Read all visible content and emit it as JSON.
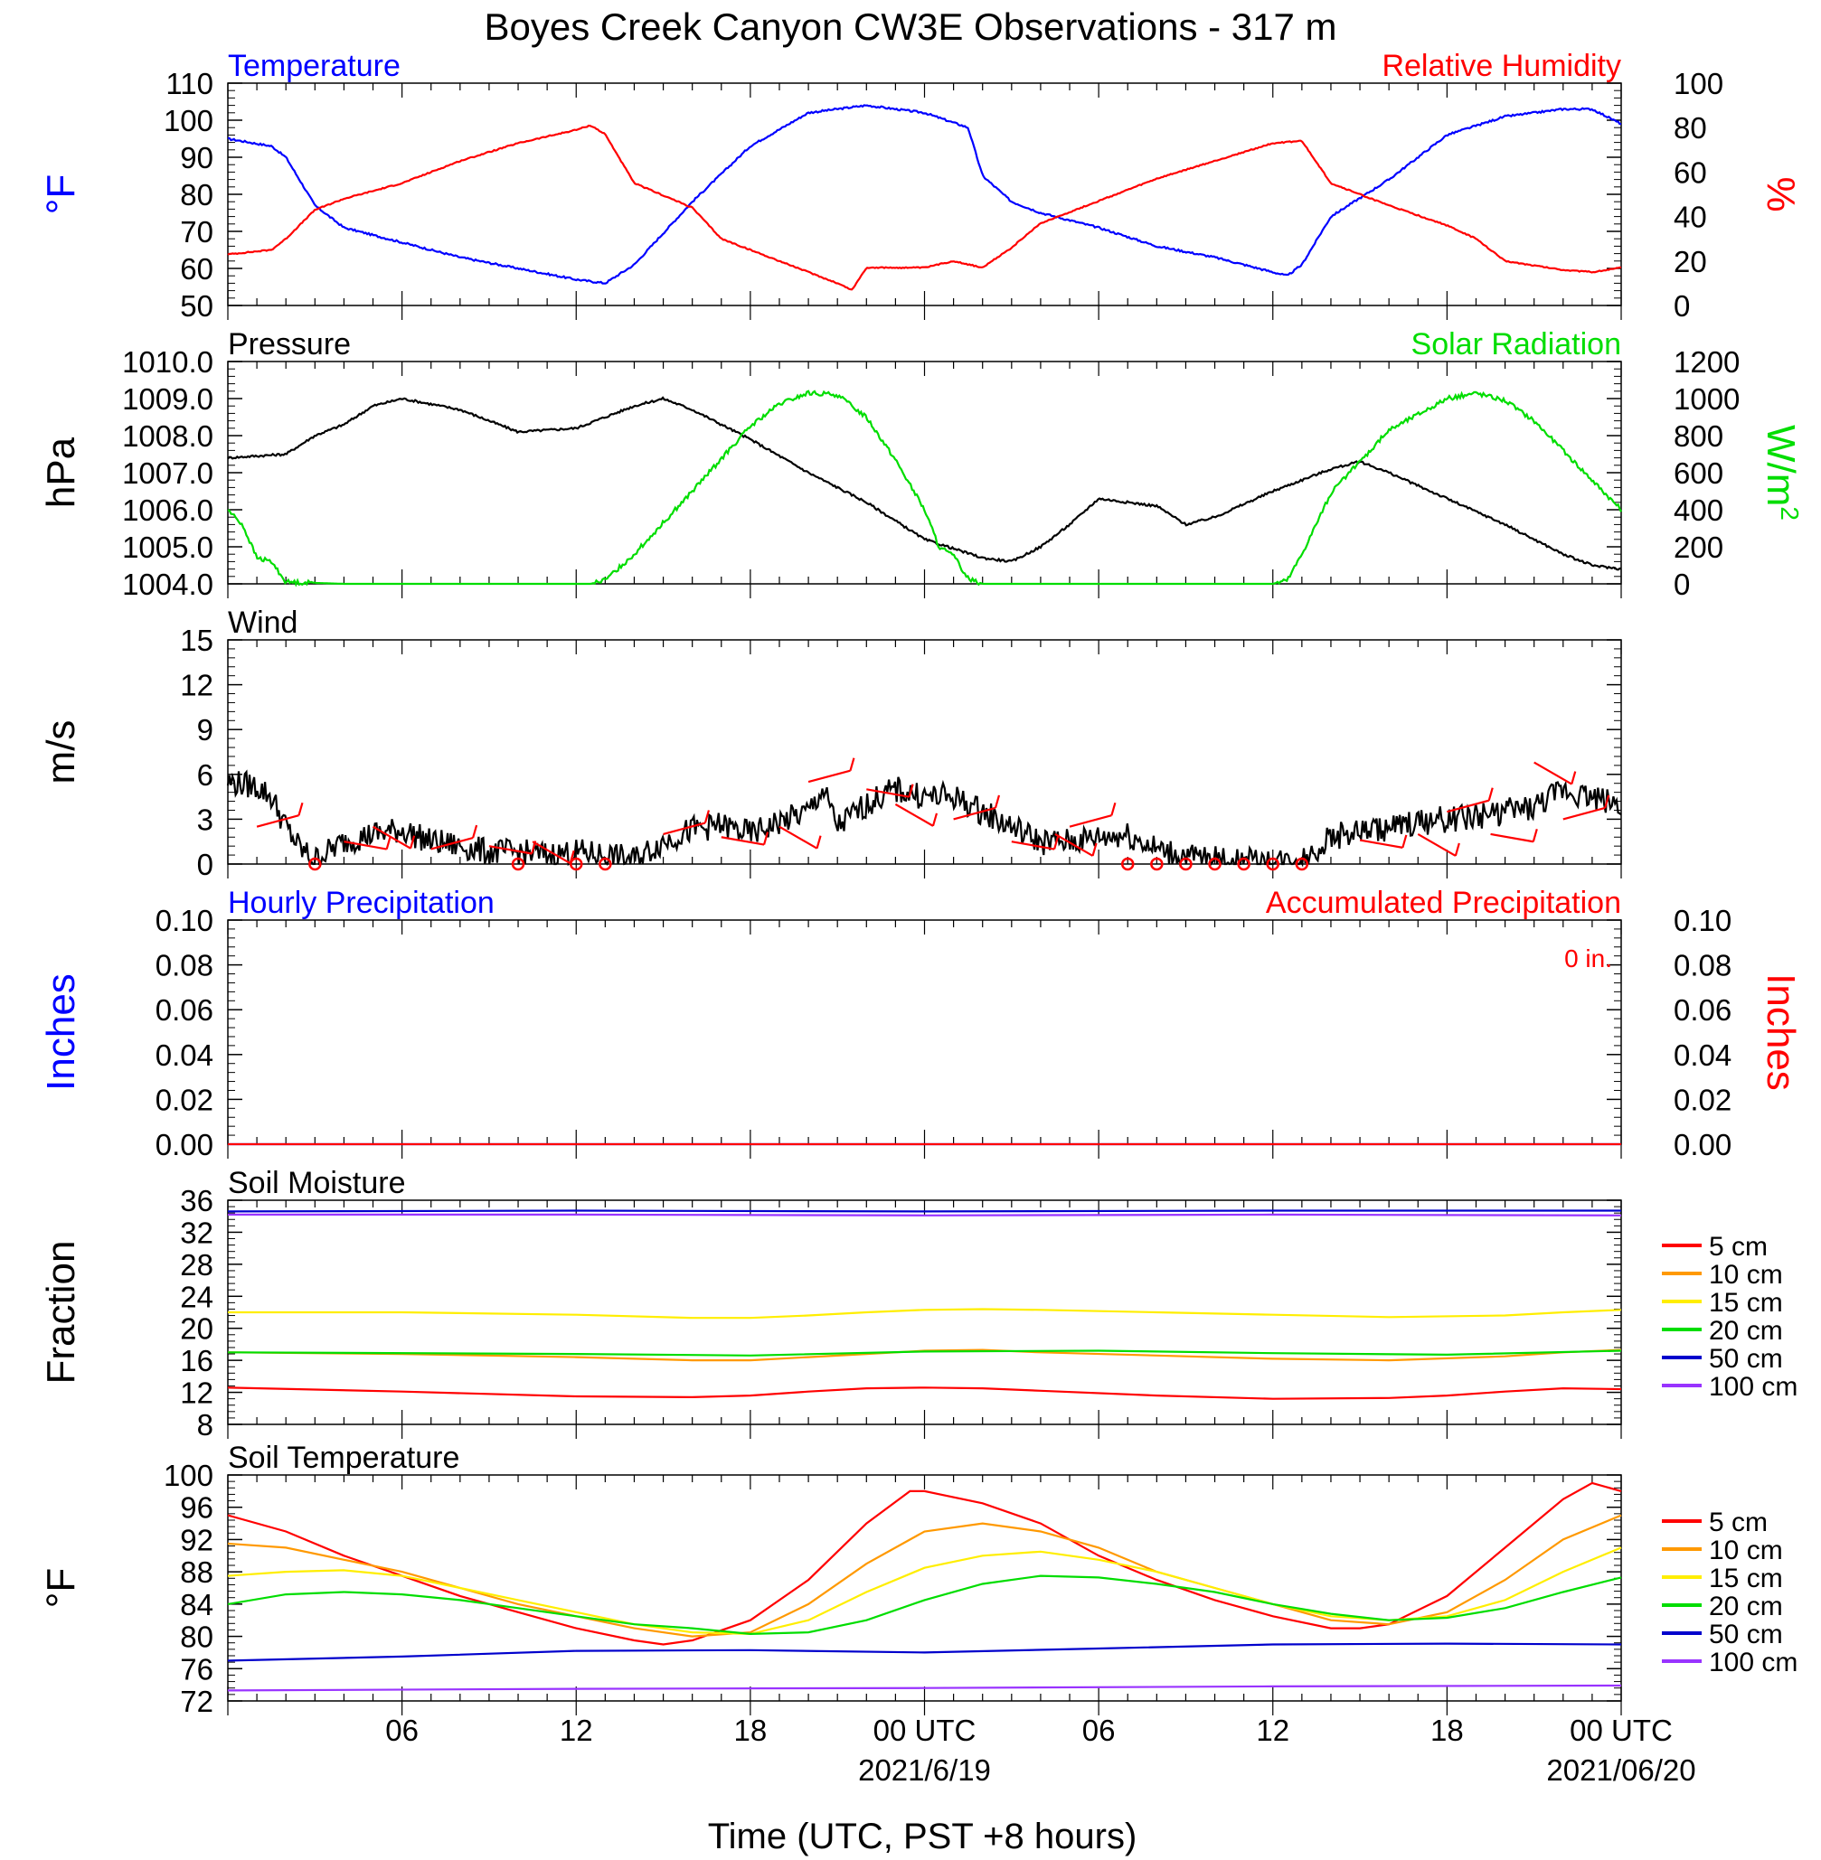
{
  "title": "Boyes Creek Canyon CW3E Observations - 317 m",
  "x_axis": {
    "title": "Time (UTC, PST +8 hours)",
    "tick_labels": [
      "06",
      "12",
      "18",
      "00 UTC",
      "06",
      "12",
      "18",
      "00 UTC"
    ],
    "date_labels": [
      "2021/6/19",
      "2021/06/20"
    ]
  },
  "colors": {
    "red": "#ff0000",
    "blue": "#0000ff",
    "green": "#00dd00",
    "black": "#000000",
    "orange": "#ff9900",
    "yellow": "#ffee00",
    "purple": "#9933ff"
  },
  "chart_data": [
    {
      "type": "line",
      "left_label": "Temperature",
      "right_label": "Relative Humidity",
      "ylabel": "°F",
      "y2label": "%",
      "ylim": [
        50,
        110
      ],
      "y2lim": [
        0,
        100
      ],
      "yticks": [
        "50",
        "60",
        "70",
        "80",
        "90",
        "100",
        "110"
      ],
      "y2ticks": [
        "0",
        "20",
        "40",
        "60",
        "80",
        "100"
      ],
      "xlim_hours": [
        0,
        48
      ],
      "series": [
        {
          "name": "Temperature",
          "axis": "left",
          "color": "#0000ff",
          "x": [
            0,
            1.5,
            2,
            3,
            4,
            6,
            8,
            10,
            12,
            13,
            14,
            16,
            18,
            20,
            21,
            22,
            24,
            25.5,
            26,
            27,
            28,
            30,
            32,
            34,
            36,
            36.5,
            37,
            38,
            40,
            42,
            44,
            46,
            47,
            48
          ],
          "y": [
            95,
            93,
            90,
            77,
            71,
            67,
            63,
            60,
            57,
            56,
            61,
            78,
            93,
            102,
            103,
            104,
            102,
            98,
            85,
            78,
            75,
            71,
            66,
            63,
            59,
            58,
            61,
            74,
            84,
            96,
            101,
            103,
            103,
            99
          ]
        },
        {
          "name": "Relative Humidity",
          "axis": "right",
          "color": "#ff0000",
          "x": [
            0,
            1.5,
            2,
            3,
            4,
            6,
            8,
            10,
            12,
            12.5,
            13,
            14,
            16,
            17,
            18,
            20,
            21,
            21.5,
            22,
            24,
            25,
            26,
            27,
            28,
            30,
            32,
            34,
            36,
            37,
            38,
            40,
            42,
            43,
            44,
            46,
            47,
            48
          ],
          "y": [
            23,
            25,
            30,
            43,
            48,
            55,
            65,
            73,
            79,
            81,
            77,
            55,
            44,
            30,
            25,
            15,
            10,
            7,
            17,
            17,
            20,
            17,
            26,
            37,
            47,
            57,
            65,
            73,
            74,
            55,
            45,
            36,
            30,
            20,
            16,
            15,
            17
          ]
        }
      ]
    },
    {
      "type": "line",
      "left_label": "Pressure",
      "right_label": "Solar Radiation",
      "ylabel": "hPa",
      "y2label": "W/m",
      "y2label_sup": "2",
      "ylim": [
        1004.0,
        1010.0
      ],
      "y2lim": [
        0,
        1200
      ],
      "yticks": [
        "1004.0",
        "1005.0",
        "1006.0",
        "1007.0",
        "1008.0",
        "1009.0",
        "1010.0"
      ],
      "y2ticks": [
        "0",
        "200",
        "400",
        "600",
        "800",
        "1000",
        "1200"
      ],
      "xlim_hours": [
        0,
        48
      ],
      "series": [
        {
          "name": "Pressure",
          "axis": "left",
          "color": "#000000",
          "x": [
            0,
            2,
            3,
            4,
            5,
            6,
            8,
            9,
            10,
            12,
            13,
            14,
            15,
            16,
            18,
            20,
            22,
            24,
            26,
            27,
            28,
            29,
            30,
            32,
            33,
            34,
            36,
            38,
            39,
            40,
            42,
            44,
            46,
            47,
            48
          ],
          "y": [
            1007.4,
            1007.5,
            1008.0,
            1008.3,
            1008.8,
            1009.0,
            1008.7,
            1008.4,
            1008.1,
            1008.2,
            1008.5,
            1008.8,
            1009.0,
            1008.7,
            1007.9,
            1007.0,
            1006.2,
            1005.2,
            1004.7,
            1004.6,
            1005.0,
            1005.6,
            1006.3,
            1006.1,
            1005.6,
            1005.8,
            1006.5,
            1007.1,
            1007.3,
            1007.0,
            1006.3,
            1005.6,
            1004.8,
            1004.5,
            1004.4
          ]
        },
        {
          "name": "Solar Radiation",
          "axis": "right",
          "color": "#00dd00",
          "x": [
            0,
            0.5,
            1,
            1.5,
            2,
            4,
            8,
            10,
            12,
            12.5,
            13,
            14,
            16,
            18,
            19,
            20,
            21,
            22,
            23,
            24,
            24.5,
            25,
            25.5,
            26,
            28,
            32,
            36,
            36.5,
            37,
            38,
            40,
            42,
            43,
            44,
            45,
            46,
            47,
            48
          ],
          "y": [
            400,
            320,
            140,
            120,
            10,
            0,
            0,
            0,
            0,
            0,
            20,
            160,
            500,
            850,
            970,
            1030,
            1020,
            900,
            670,
            400,
            200,
            150,
            30,
            0,
            0,
            0,
            0,
            20,
            160,
            490,
            830,
            1000,
            1030,
            990,
            880,
            720,
            560,
            400
          ]
        }
      ]
    },
    {
      "type": "line",
      "left_label": "Wind",
      "ylabel": "m/s",
      "ylim": [
        0,
        15
      ],
      "yticks": [
        "0",
        "3",
        "6",
        "9",
        "12",
        "15"
      ],
      "xlim_hours": [
        0,
        48
      ],
      "series": [
        {
          "name": "Wind",
          "axis": "left",
          "color": "#000000",
          "x": [
            0,
            1,
            1.5,
            2,
            2.5,
            3,
            4,
            5,
            6,
            7,
            8,
            9,
            10,
            11,
            12,
            13,
            14,
            15,
            16,
            17,
            18,
            19,
            20,
            20.5,
            21,
            22,
            23,
            24,
            25,
            26,
            27,
            28,
            29,
            30,
            31,
            32,
            33,
            34,
            35,
            36,
            37,
            38,
            39,
            40,
            41,
            42,
            43,
            44,
            45,
            46,
            47,
            48
          ],
          "y": [
            5.5,
            5.2,
            4.5,
            2.5,
            1.0,
            0.3,
            1.5,
            2.0,
            2.3,
            1.5,
            1.2,
            0.8,
            0.8,
            0.6,
            0.8,
            0.6,
            0.3,
            1.5,
            2.3,
            2.6,
            2.0,
            2.8,
            3.5,
            5.0,
            2.5,
            4.0,
            5.0,
            4.5,
            4.5,
            3.5,
            2.5,
            1.5,
            1.5,
            1.8,
            2.0,
            1.0,
            0.5,
            0.3,
            0.2,
            0.1,
            0.3,
            1.8,
            2.2,
            2.4,
            2.8,
            3.0,
            3.2,
            3.5,
            3.8,
            5.0,
            4.5,
            4.0
          ]
        }
      ]
    },
    {
      "type": "line",
      "left_label": "Hourly Precipitation",
      "right_label": "Accumulated Precipitation",
      "annotation": "0 in.",
      "ylabel": "Inches",
      "y2label": "Inches",
      "ylim": [
        0,
        0.1
      ],
      "y2lim": [
        0,
        0.1
      ],
      "yticks": [
        "0.00",
        "0.02",
        "0.04",
        "0.06",
        "0.08",
        "0.10"
      ],
      "y2ticks": [
        "0.00",
        "0.02",
        "0.04",
        "0.06",
        "0.08",
        "0.10"
      ],
      "xlim_hours": [
        0,
        48
      ],
      "series": [
        {
          "name": "Hourly Precipitation",
          "axis": "left",
          "color": "#0000ff",
          "x": [
            0,
            48
          ],
          "y": [
            0,
            0
          ]
        },
        {
          "name": "Accumulated Precipitation",
          "axis": "right",
          "color": "#ff0000",
          "x": [
            0,
            48
          ],
          "y": [
            0,
            0
          ]
        }
      ]
    },
    {
      "type": "line",
      "left_label": "Soil Moisture",
      "ylabel": "Fraction",
      "ylim": [
        8,
        36
      ],
      "yticks": [
        "8",
        "12",
        "16",
        "20",
        "24",
        "28",
        "32",
        "36"
      ],
      "xlim_hours": [
        0,
        48
      ],
      "series": [
        {
          "name": "5 cm",
          "color": "#ff0000",
          "x": [
            0,
            6,
            12,
            16,
            18,
            20,
            22,
            24,
            26,
            28,
            32,
            36,
            40,
            42,
            44,
            46,
            48
          ],
          "y": [
            12.6,
            12.1,
            11.5,
            11.4,
            11.6,
            12.1,
            12.5,
            12.6,
            12.5,
            12.2,
            11.6,
            11.2,
            11.3,
            11.6,
            12.1,
            12.5,
            12.4
          ]
        },
        {
          "name": "10 cm",
          "color": "#ff9900",
          "x": [
            0,
            6,
            12,
            16,
            18,
            20,
            22,
            24,
            26,
            28,
            32,
            36,
            40,
            44,
            46,
            48
          ],
          "y": [
            17.0,
            16.8,
            16.4,
            16.0,
            16.0,
            16.4,
            16.8,
            17.2,
            17.3,
            17.0,
            16.6,
            16.2,
            16.0,
            16.5,
            17.0,
            17.3
          ]
        },
        {
          "name": "15 cm",
          "color": "#ffee00",
          "x": [
            0,
            6,
            12,
            16,
            18,
            20,
            22,
            24,
            26,
            28,
            32,
            36,
            40,
            44,
            46,
            48
          ],
          "y": [
            22.0,
            22.0,
            21.7,
            21.3,
            21.3,
            21.6,
            22.0,
            22.3,
            22.4,
            22.3,
            22.0,
            21.7,
            21.4,
            21.6,
            22.0,
            22.3
          ]
        },
        {
          "name": "20 cm",
          "color": "#00dd00",
          "x": [
            0,
            12,
            18,
            24,
            30,
            36,
            42,
            48
          ],
          "y": [
            17.0,
            16.8,
            16.6,
            17.1,
            17.2,
            16.9,
            16.7,
            17.2
          ]
        },
        {
          "name": "50 cm",
          "color": "#0000cc",
          "x": [
            0,
            12,
            24,
            36,
            48
          ],
          "y": [
            34.6,
            34.7,
            34.6,
            34.7,
            34.7
          ]
        },
        {
          "name": "100 cm",
          "color": "#9933ff",
          "x": [
            0,
            12,
            24,
            36,
            48
          ],
          "y": [
            34.2,
            34.2,
            34.1,
            34.2,
            34.1
          ]
        }
      ]
    },
    {
      "type": "line",
      "left_label": "Soil Temperature",
      "ylabel": "°F",
      "ylim": [
        72,
        100
      ],
      "yticks": [
        "72",
        "76",
        "80",
        "84",
        "88",
        "92",
        "96",
        "100"
      ],
      "xlim_hours": [
        0,
        48
      ],
      "series": [
        {
          "name": "5 cm",
          "color": "#ff0000",
          "x": [
            0,
            2,
            4,
            6,
            8,
            10,
            12,
            14,
            15,
            16,
            18,
            20,
            22,
            23.5,
            24,
            26,
            28,
            30,
            32,
            34,
            36,
            38,
            39,
            40,
            42,
            44,
            46,
            47,
            48
          ],
          "y": [
            95,
            93,
            90,
            87.5,
            85,
            83,
            81,
            79.5,
            79,
            79.5,
            82,
            87,
            94,
            98,
            98,
            96.5,
            94,
            90,
            87,
            84.5,
            82.5,
            81,
            81,
            81.5,
            85,
            91,
            97,
            99,
            98
          ]
        },
        {
          "name": "10 cm",
          "color": "#ff9900",
          "x": [
            0,
            2,
            4,
            6,
            8,
            10,
            12,
            14,
            16,
            18,
            20,
            22,
            24,
            26,
            28,
            30,
            32,
            34,
            36,
            38,
            40,
            42,
            44,
            46,
            48
          ],
          "y": [
            91.5,
            91,
            89.5,
            88,
            86,
            84,
            82.5,
            81,
            80,
            80.5,
            84,
            89,
            93,
            94,
            93,
            91,
            88,
            86,
            84,
            82,
            81.5,
            83,
            87,
            92,
            95
          ]
        },
        {
          "name": "15 cm",
          "color": "#ffee00",
          "x": [
            0,
            2,
            4,
            6,
            8,
            10,
            12,
            14,
            16,
            18,
            20,
            22,
            24,
            26,
            28,
            30,
            32,
            34,
            36,
            38,
            40,
            42,
            44,
            46,
            48
          ],
          "y": [
            87.5,
            88,
            88.2,
            87.5,
            86,
            84.5,
            83,
            81.5,
            80.5,
            80.3,
            82,
            85.5,
            88.5,
            90,
            90.5,
            89.5,
            88,
            86,
            84,
            82.5,
            82,
            82.5,
            84.5,
            88,
            91
          ]
        },
        {
          "name": "20 cm",
          "color": "#00dd00",
          "x": [
            0,
            2,
            4,
            6,
            8,
            10,
            12,
            14,
            16,
            18,
            20,
            22,
            24,
            26,
            28,
            30,
            32,
            34,
            36,
            38,
            40,
            42,
            44,
            46,
            48
          ],
          "y": [
            84,
            85.2,
            85.5,
            85.2,
            84.5,
            83.5,
            82.5,
            81.5,
            81,
            80.3,
            80.5,
            82,
            84.5,
            86.5,
            87.5,
            87.3,
            86.5,
            85.5,
            84,
            82.8,
            82,
            82.3,
            83.5,
            85.5,
            87.3
          ]
        },
        {
          "name": "50 cm",
          "color": "#0000cc",
          "x": [
            0,
            6,
            12,
            18,
            24,
            30,
            36,
            42,
            48
          ],
          "y": [
            77.0,
            77.5,
            78.2,
            78.3,
            78.0,
            78.5,
            79.0,
            79.1,
            79.0
          ]
        },
        {
          "name": "100 cm",
          "color": "#9933ff",
          "x": [
            0,
            12,
            24,
            36,
            48
          ],
          "y": [
            73.3,
            73.5,
            73.6,
            73.8,
            73.9
          ]
        }
      ]
    }
  ]
}
